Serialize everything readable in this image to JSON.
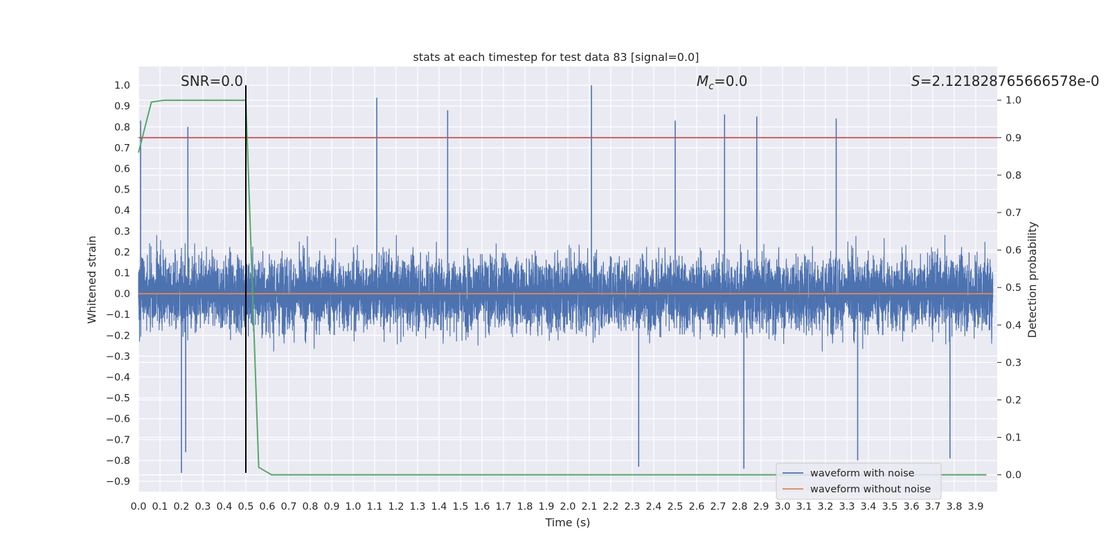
{
  "chart_data": {
    "type": "line",
    "title": "stats at each timestep for test data 83 [signal=0.0]",
    "xlabel": "Time (s)",
    "ylabel": "Whitened strain",
    "y2label": "Detection probability",
    "xlim": [
      0.0,
      4.0
    ],
    "ylim": [
      -0.95,
      1.09
    ],
    "y2lim": [
      -0.045,
      1.09
    ],
    "xticks": [
      "0.0",
      "0.1",
      "0.2",
      "0.3",
      "0.4",
      "0.5",
      "0.6",
      "0.7",
      "0.8",
      "0.9",
      "1.0",
      "1.1",
      "1.2",
      "1.3",
      "1.4",
      "1.5",
      "1.6",
      "1.7",
      "1.8",
      "1.9",
      "2.0",
      "2.1",
      "2.2",
      "2.3",
      "2.4",
      "2.5",
      "2.6",
      "2.7",
      "2.8",
      "2.9",
      "3.0",
      "3.1",
      "3.2",
      "3.3",
      "3.4",
      "3.5",
      "3.6",
      "3.7",
      "3.8",
      "3.9"
    ],
    "yticks": [
      "-0.9",
      "-0.8",
      "-0.7",
      "-0.6",
      "-0.5",
      "-0.4",
      "-0.3",
      "-0.2",
      "-0.1",
      "0.0",
      "0.1",
      "0.2",
      "0.3",
      "0.4",
      "0.5",
      "0.6",
      "0.7",
      "0.8",
      "0.9",
      "1.0"
    ],
    "y2ticks": [
      "0.0",
      "0.1",
      "0.2",
      "0.3",
      "0.4",
      "0.5",
      "0.6",
      "0.7",
      "0.8",
      "0.9",
      "1.0"
    ],
    "grid": true,
    "legend_position": "lower-right",
    "colors": {
      "background": "#eaeaf2",
      "grid": "#ffffff",
      "noisy": "#4c72b0",
      "clean": "#dd8452",
      "probability": "#55a868",
      "threshold": "#c44e52",
      "marker": "#000000"
    },
    "annotations": {
      "snr": "SNR=0.0",
      "mc_symbol": "M",
      "mc_sub": "c",
      "mc_value": "=0.0",
      "s_symbol": "S",
      "s_value": "=2.121828765666578e-0"
    },
    "series": [
      {
        "name": "waveform with noise",
        "axis": "left",
        "style": "noise",
        "sample_rate": 2048,
        "amplitude_typical": 0.5,
        "spikes": [
          {
            "x": 0.01,
            "y": 0.83
          },
          {
            "x": 1.11,
            "y": 0.94
          },
          {
            "x": 1.44,
            "y": 0.88
          },
          {
            "x": 2.11,
            "y": 1.0
          },
          {
            "x": 2.5,
            "y": 0.83
          },
          {
            "x": 2.73,
            "y": 0.86
          },
          {
            "x": 2.88,
            "y": 0.85
          },
          {
            "x": 3.25,
            "y": 0.84
          },
          {
            "x": 0.23,
            "y": 0.8
          },
          {
            "x": 0.2,
            "y": -0.86
          },
          {
            "x": 2.82,
            "y": -0.84
          },
          {
            "x": 2.33,
            "y": -0.83
          },
          {
            "x": 3.35,
            "y": -0.8
          },
          {
            "x": 3.78,
            "y": -0.79
          },
          {
            "x": 0.22,
            "y": -0.76
          }
        ]
      },
      {
        "name": "waveform without noise",
        "axis": "left",
        "x": [
          0.0,
          3.98
        ],
        "y": [
          0.0,
          0.0
        ]
      },
      {
        "name": "",
        "axis": "right",
        "x": [
          0.0,
          0.06,
          0.12,
          0.19,
          0.25,
          0.31,
          0.37,
          0.44,
          0.5,
          0.56,
          0.62,
          0.69,
          3.95
        ],
        "y": [
          0.86,
          0.995,
          1.0,
          1.0,
          1.0,
          1.0,
          1.0,
          1.0,
          1.0,
          0.02,
          0.0,
          0.0,
          0.0
        ]
      }
    ],
    "threshold_line": {
      "axis": "right",
      "y": 0.9
    },
    "marker_line": {
      "x": 0.5,
      "y_from": -0.86,
      "y_to": 1.0
    }
  }
}
